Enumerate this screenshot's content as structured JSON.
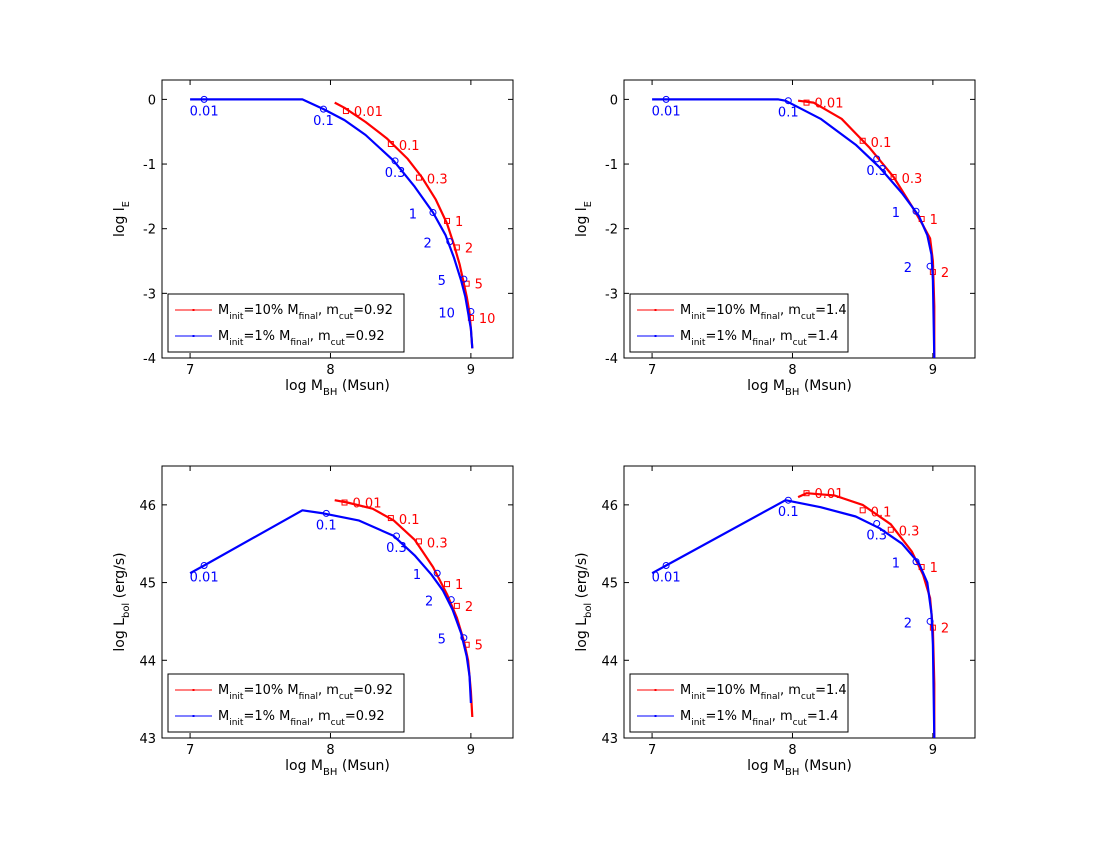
{
  "colors": {
    "red": "#ff0000",
    "blue": "#0000ff",
    "axis": "#000000"
  },
  "chart_data": [
    {
      "type": "line",
      "xlabel": "log M_BH (Msun)",
      "ylabel": "log l_E",
      "xlim": [
        6.8,
        9.3
      ],
      "ylim": [
        -4,
        0.3
      ],
      "xticks": [
        7,
        8,
        9
      ],
      "yticks": [
        -4,
        -3,
        -2,
        -1,
        0
      ],
      "legend": "bottom-left",
      "series": [
        {
          "name": "M_init=10% M_final, m_cut=0.92",
          "color": "red",
          "x": [
            8.03,
            8.1,
            8.25,
            8.4,
            8.55,
            8.65,
            8.75,
            8.83,
            8.88,
            8.92,
            8.95,
            8.97,
            8.99,
            9.0,
            9.01
          ],
          "y": [
            -0.05,
            -0.13,
            -0.35,
            -0.6,
            -0.92,
            -1.2,
            -1.55,
            -1.92,
            -2.25,
            -2.55,
            -2.85,
            -3.05,
            -3.3,
            -3.55,
            -3.85
          ],
          "markers": [
            {
              "x": 8.11,
              "y": -0.18,
              "label": "0.01"
            },
            {
              "x": 8.43,
              "y": -0.69,
              "label": "0.1"
            },
            {
              "x": 8.63,
              "y": -1.21,
              "label": "0.3"
            },
            {
              "x": 8.83,
              "y": -1.88,
              "label": "1"
            },
            {
              "x": 8.9,
              "y": -2.29,
              "label": "2"
            },
            {
              "x": 8.97,
              "y": -2.85,
              "label": "5"
            },
            {
              "x": 9.0,
              "y": -3.38,
              "label": "10"
            }
          ]
        },
        {
          "name": "M_init=1% M_final, m_cut=0.92",
          "color": "blue",
          "x": [
            7.0,
            7.1,
            7.8,
            7.95,
            8.1,
            8.25,
            8.45,
            8.6,
            8.73,
            8.82,
            8.88,
            8.93,
            8.96,
            8.98,
            9.0,
            9.01
          ],
          "y": [
            0.0,
            0.0,
            0.0,
            -0.15,
            -0.32,
            -0.55,
            -0.95,
            -1.35,
            -1.75,
            -2.1,
            -2.45,
            -2.8,
            -3.05,
            -3.3,
            -3.55,
            -3.85
          ],
          "markers": [
            {
              "x": 7.1,
              "y": 0.0,
              "label": "0.01"
            },
            {
              "x": 7.95,
              "y": -0.15,
              "label": "0.1"
            },
            {
              "x": 8.46,
              "y": -0.95,
              "label": "0.3"
            },
            {
              "x": 8.73,
              "y": -1.75,
              "label": "1"
            },
            {
              "x": 8.85,
              "y": -2.2,
              "label": "2"
            },
            {
              "x": 8.95,
              "y": -2.78,
              "label": "5"
            },
            {
              "x": 9.0,
              "y": -3.28,
              "label": "10"
            }
          ]
        }
      ]
    },
    {
      "type": "line",
      "xlabel": "log M_BH (Msun)",
      "ylabel": "log l_E",
      "xlim": [
        6.8,
        9.3
      ],
      "ylim": [
        -4,
        0.3
      ],
      "xticks": [
        7,
        8,
        9
      ],
      "yticks": [
        -4,
        -3,
        -2,
        -1,
        0
      ],
      "legend": "bottom-left",
      "series": [
        {
          "name": "M_init=10% M_final, m_cut=1.4",
          "color": "red",
          "x": [
            8.04,
            8.15,
            8.35,
            8.55,
            8.72,
            8.85,
            8.93,
            8.98,
            9.0,
            9.01,
            9.01
          ],
          "y": [
            -0.02,
            -0.05,
            -0.3,
            -0.75,
            -1.2,
            -1.65,
            -1.95,
            -2.15,
            -2.5,
            -3.2,
            -4.0
          ],
          "markers": [
            {
              "x": 8.1,
              "y": -0.05,
              "label": "0.01"
            },
            {
              "x": 8.5,
              "y": -0.64,
              "label": "0.1"
            },
            {
              "x": 8.72,
              "y": -1.2,
              "label": "0.3"
            },
            {
              "x": 8.92,
              "y": -1.85,
              "label": "1"
            },
            {
              "x": 9.0,
              "y": -2.67,
              "label": "2"
            }
          ]
        },
        {
          "name": "M_init=1% M_final, m_cut=1.4",
          "color": "blue",
          "x": [
            7.0,
            7.1,
            7.9,
            7.95,
            8.2,
            8.45,
            8.62,
            8.78,
            8.9,
            8.96,
            8.99,
            9.0,
            9.01
          ],
          "y": [
            0.0,
            0.0,
            0.0,
            -0.02,
            -0.3,
            -0.7,
            -1.05,
            -1.45,
            -1.8,
            -2.1,
            -2.4,
            -2.8,
            -4.0
          ],
          "markers": [
            {
              "x": 7.1,
              "y": 0.0,
              "label": "0.01"
            },
            {
              "x": 7.97,
              "y": -0.02,
              "label": "0.1"
            },
            {
              "x": 8.6,
              "y": -0.92,
              "label": "0.3"
            },
            {
              "x": 8.88,
              "y": -1.73,
              "label": "1"
            },
            {
              "x": 8.98,
              "y": -2.58,
              "label": "2"
            }
          ]
        }
      ]
    },
    {
      "type": "line",
      "xlabel": "log M_BH (Msun)",
      "ylabel": "log L_bol (erg/s)",
      "xlim": [
        6.8,
        9.3
      ],
      "ylim": [
        43,
        46.5
      ],
      "xticks": [
        7,
        8,
        9
      ],
      "yticks": [
        43,
        44,
        45,
        46
      ],
      "legend": "bottom-left",
      "series": [
        {
          "name": "M_init=10% M_final, m_cut=0.92",
          "color": "red",
          "x": [
            8.03,
            8.12,
            8.3,
            8.45,
            8.6,
            8.73,
            8.83,
            8.9,
            8.95,
            8.98,
            9.0,
            9.01
          ],
          "y": [
            46.06,
            46.03,
            45.95,
            45.8,
            45.55,
            45.2,
            44.85,
            44.55,
            44.25,
            44.0,
            43.6,
            43.27
          ],
          "markers": [
            {
              "x": 8.1,
              "y": 46.03,
              "label": "0.01"
            },
            {
              "x": 8.43,
              "y": 45.83,
              "label": "0.1"
            },
            {
              "x": 8.63,
              "y": 45.53,
              "label": "0.3"
            },
            {
              "x": 8.83,
              "y": 44.98,
              "label": "1"
            },
            {
              "x": 8.9,
              "y": 44.7,
              "label": "2"
            },
            {
              "x": 8.97,
              "y": 44.2,
              "label": "5"
            }
          ]
        },
        {
          "name": "M_init=1% M_final, m_cut=0.92",
          "color": "blue",
          "x": [
            7.0,
            7.1,
            7.8,
            7.95,
            8.2,
            8.45,
            8.6,
            8.72,
            8.8,
            8.87,
            8.93,
            8.97,
            8.99,
            9.0
          ],
          "y": [
            45.12,
            45.22,
            45.93,
            45.89,
            45.8,
            45.6,
            45.35,
            45.1,
            44.9,
            44.65,
            44.35,
            44.05,
            43.8,
            43.45
          ],
          "markers": [
            {
              "x": 7.1,
              "y": 45.22,
              "label": "0.01"
            },
            {
              "x": 7.97,
              "y": 45.89,
              "label": "0.1"
            },
            {
              "x": 8.47,
              "y": 45.6,
              "label": "0.3"
            },
            {
              "x": 8.76,
              "y": 45.12,
              "label": "1"
            },
            {
              "x": 8.86,
              "y": 44.78,
              "label": "2"
            },
            {
              "x": 8.95,
              "y": 44.29,
              "label": "5"
            }
          ]
        }
      ]
    },
    {
      "type": "line",
      "xlabel": "log M_BH (Msun)",
      "ylabel": "log L_bol (erg/s)",
      "xlim": [
        6.8,
        9.3
      ],
      "ylim": [
        43,
        46.5
      ],
      "xticks": [
        7,
        8,
        9
      ],
      "yticks": [
        43,
        44,
        45,
        46
      ],
      "legend": "bottom-left",
      "series": [
        {
          "name": "M_init=10% M_final, m_cut=1.4",
          "color": "red",
          "x": [
            8.04,
            8.1,
            8.3,
            8.5,
            8.7,
            8.85,
            8.93,
            8.98,
            9.0,
            9.01,
            9.01
          ],
          "y": [
            46.1,
            46.15,
            46.12,
            46.0,
            45.75,
            45.4,
            45.1,
            44.8,
            44.4,
            43.7,
            43.0
          ],
          "markers": [
            {
              "x": 8.1,
              "y": 46.15,
              "label": "0.01"
            },
            {
              "x": 8.5,
              "y": 45.93,
              "label": "0.1"
            },
            {
              "x": 8.7,
              "y": 45.68,
              "label": "0.3"
            },
            {
              "x": 8.92,
              "y": 45.2,
              "label": "1"
            },
            {
              "x": 9.0,
              "y": 44.42,
              "label": "2"
            }
          ]
        },
        {
          "name": "M_init=1% M_final, m_cut=1.4",
          "color": "blue",
          "x": [
            7.0,
            7.1,
            7.95,
            8.2,
            8.45,
            8.62,
            8.78,
            8.9,
            8.96,
            8.99,
            9.0,
            9.01
          ],
          "y": [
            45.12,
            45.22,
            46.06,
            45.97,
            45.85,
            45.7,
            45.5,
            45.25,
            45.0,
            44.6,
            44.2,
            43.0
          ],
          "markers": [
            {
              "x": 7.1,
              "y": 45.22,
              "label": "0.01"
            },
            {
              "x": 7.97,
              "y": 46.06,
              "label": "0.1"
            },
            {
              "x": 8.6,
              "y": 45.76,
              "label": "0.3"
            },
            {
              "x": 8.88,
              "y": 45.27,
              "label": "1"
            },
            {
              "x": 8.98,
              "y": 44.5,
              "label": "2"
            }
          ]
        }
      ]
    }
  ]
}
